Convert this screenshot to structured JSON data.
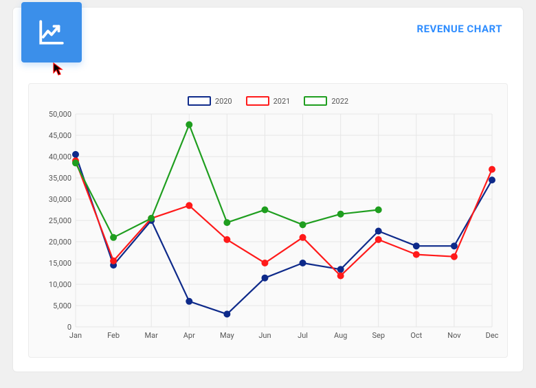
{
  "header": {
    "title": "REVENUE CHART",
    "title_color": "#2f8dff",
    "title_fontsize": 15,
    "icon_bg": "#3b8fea"
  },
  "chart": {
    "type": "line",
    "background_color": "#fafafa",
    "panel_border": "#ececec",
    "grid_color": "#e6e6e6",
    "axis_label_color": "#555555",
    "axis_label_fontsize": 11,
    "categories": [
      "Jan",
      "Feb",
      "Mar",
      "Apr",
      "May",
      "Jun",
      "Jul",
      "Aug",
      "Sep",
      "Oct",
      "Nov",
      "Dec"
    ],
    "ylim": [
      0,
      50000
    ],
    "ytick_step": 5000,
    "ytick_labels": [
      "0",
      "5,000",
      "10,000",
      "15,000",
      "20,000",
      "25,000",
      "30,000",
      "35,000",
      "40,000",
      "45,000",
      "50,000"
    ],
    "line_width": 2.2,
    "marker_radius": 4.5,
    "marker_style": "circle",
    "legend": {
      "position": "top-center",
      "swatch_width": 34,
      "swatch_height": 14,
      "swatch_fill": "#ffffff",
      "swatch_border_width": 2.5,
      "swatch_radius": 2
    },
    "series": [
      {
        "name": "2020",
        "color": "#0e2a8a",
        "values": [
          40500,
          14500,
          25000,
          6000,
          3000,
          11500,
          15000,
          13500,
          22500,
          19000,
          19000,
          34500
        ]
      },
      {
        "name": "2021",
        "color": "#ff1a1a",
        "values": [
          39000,
          15500,
          25500,
          28500,
          20500,
          15000,
          21000,
          12000,
          20500,
          17000,
          16500,
          37000
        ]
      },
      {
        "name": "2022",
        "color": "#1f9e1f",
        "values": [
          38500,
          21000,
          25500,
          47500,
          24500,
          27500,
          24000,
          26500,
          27500,
          null,
          null,
          null
        ]
      }
    ]
  }
}
